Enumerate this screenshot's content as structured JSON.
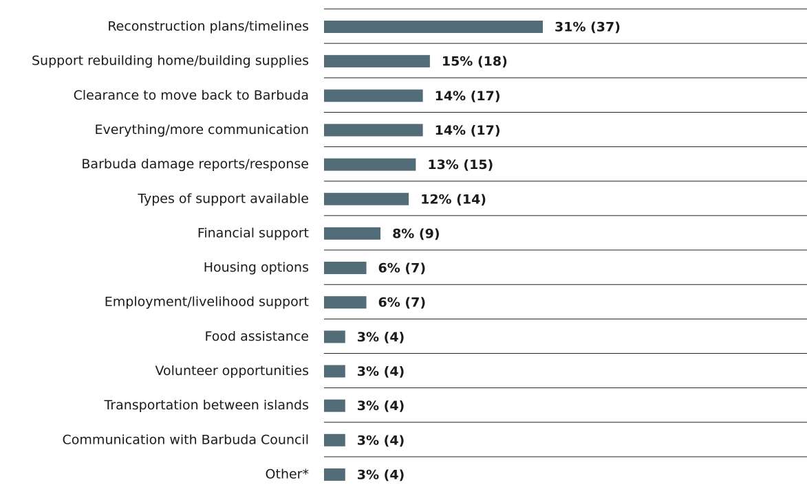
{
  "chart_data": {
    "type": "bar",
    "orientation": "horizontal",
    "categories": [
      "Reconstruction plans/timelines",
      "Support rebuilding home/building supplies",
      "Clearance to move back to Barbuda",
      "Everything/more communication",
      "Barbuda damage reports/response",
      "Types of support available",
      "Financial support",
      "Housing options",
      "Employment/livelihood support",
      "Food assistance",
      "Volunteer opportunities",
      "Transportation between islands",
      "Communication with Barbuda Council",
      "Other*"
    ],
    "values": [
      31,
      15,
      14,
      14,
      13,
      12,
      8,
      6,
      6,
      3,
      3,
      3,
      3,
      3
    ],
    "value_labels": [
      "31% (37)",
      "15% (18)",
      "14% (17)",
      "14% (17)",
      "13% (15)",
      "12% (14)",
      "8% (9)",
      "6% (7)",
      "6% (7)",
      "3% (4)",
      "3% (4)",
      "3% (4)",
      "3% (4)",
      "3% (4)"
    ],
    "color": "#536d78"
  }
}
